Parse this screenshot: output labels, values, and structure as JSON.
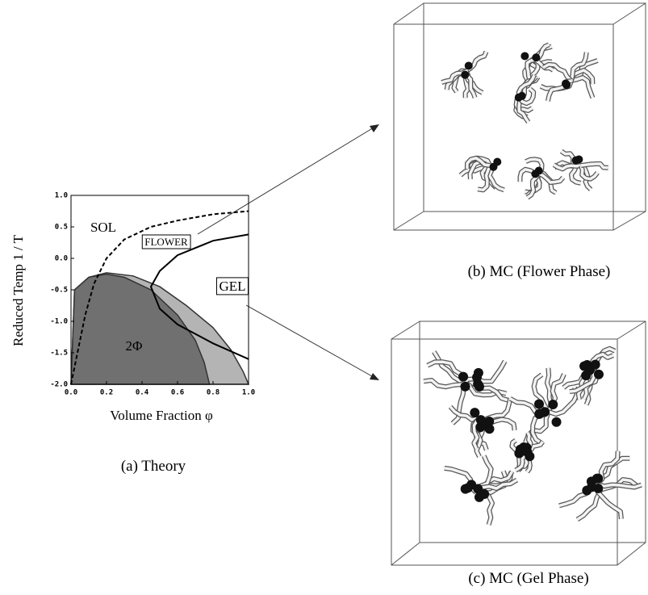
{
  "chart_data": {
    "type": "phase",
    "caption": "(a) Theory",
    "x_label": "Volume Fraction  φ",
    "y_label": "Reduced Temp   1 / T",
    "annotations": [
      "SOL",
      "FLOWER",
      "GEL",
      "2Φ"
    ],
    "xlim": [
      0,
      1
    ],
    "ylim": [
      -2,
      1
    ],
    "xticks": [
      {
        "value": 0,
        "label": "0.0"
      },
      0.2,
      0.4,
      0.6,
      0.8,
      {
        "value": 1,
        "label": "1.0"
      }
    ],
    "yticks": [
      {
        "value": 1,
        "label": "1.0"
      },
      0.5,
      {
        "value": 0,
        "label": "0.0"
      },
      -0.5,
      {
        "value": -1,
        "label": "-1.0"
      },
      -1.5,
      {
        "value": -2,
        "label": "-2.0"
      }
    ],
    "series": [
      {
        "style": "fill",
        "color": "#b4b4b4",
        "x": [
          0,
          0.02,
          0.1,
          0.2,
          0.35,
          0.5,
          0.65,
          0.8,
          0.9,
          0.97,
          1.0
        ],
        "values": [
          -2,
          -0.5,
          -0.3,
          -0.23,
          -0.28,
          -0.45,
          -0.75,
          -1.1,
          -1.45,
          -1.8,
          -2
        ]
      },
      {
        "style": "fill",
        "color": "#707070",
        "x": [
          0,
          0.02,
          0.1,
          0.2,
          0.3,
          0.45,
          0.6,
          0.7,
          0.75,
          0.78
        ],
        "values": [
          -2,
          -0.5,
          -0.3,
          -0.25,
          -0.3,
          -0.5,
          -0.9,
          -1.3,
          -1.65,
          -2
        ]
      },
      {
        "style": "dashed",
        "color": "#000000",
        "x": [
          0.0,
          0.08,
          0.13,
          0.2,
          0.3,
          0.45,
          0.6,
          0.8,
          1.0
        ],
        "values": [
          -2,
          -0.9,
          -0.4,
          0.0,
          0.3,
          0.5,
          0.6,
          0.7,
          0.75
        ]
      },
      {
        "style": "solid",
        "color": "#000000",
        "x": [
          1.0,
          0.8,
          0.6,
          0.5,
          0.45,
          0.5,
          0.6,
          0.8,
          1.0
        ],
        "values": [
          0.38,
          0.28,
          0.05,
          -0.2,
          -0.45,
          -0.8,
          -1.05,
          -1.35,
          -1.6
        ]
      }
    ]
  },
  "captions": [
    "(b) MC (Flower Phase)",
    "(c) MC (Gel Phase)"
  ]
}
